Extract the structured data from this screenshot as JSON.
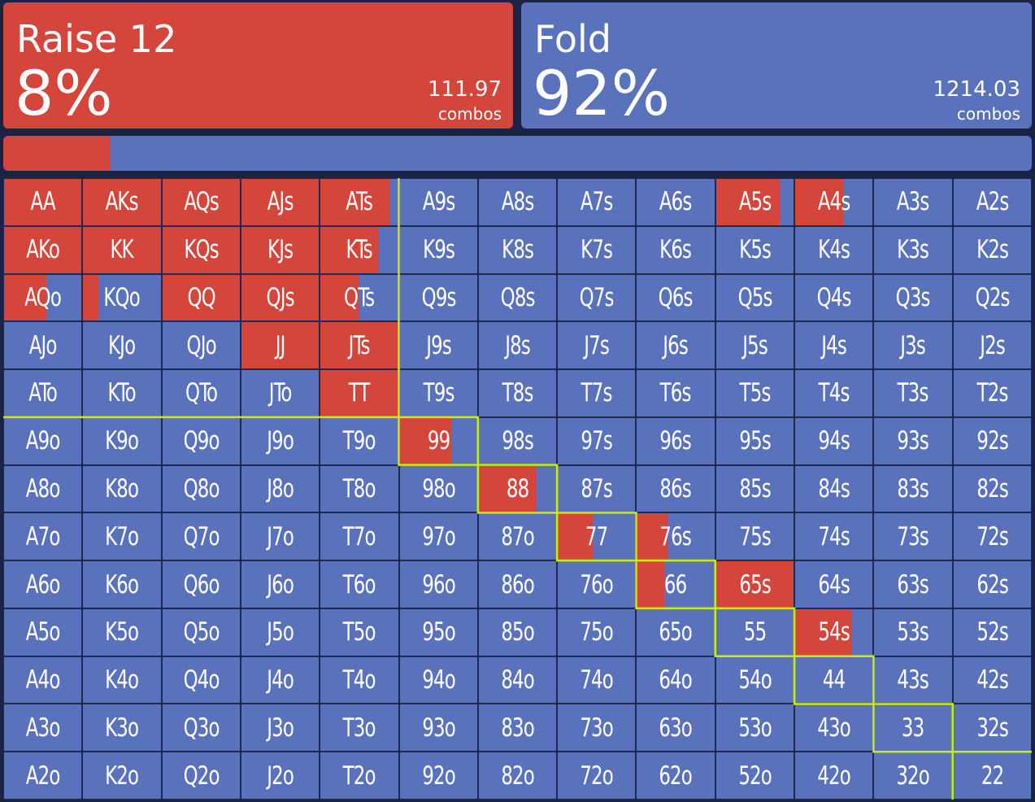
{
  "colors": {
    "raise": "#d4453b",
    "fold": "#5a72bb",
    "outline": "#c8f000"
  },
  "actions": [
    {
      "name": "Raise 12",
      "percent": "8%",
      "combos": "111.97",
      "combos_label": "combos"
    },
    {
      "name": "Fold",
      "percent": "92%",
      "combos": "1214.03",
      "combos_label": "combos"
    }
  ],
  "frequency_bar": {
    "raise_fraction": 0.08,
    "fold_fraction": 0.92
  },
  "grid": {
    "hands": [
      [
        "AA",
        "AKs",
        "AQs",
        "AJs",
        "ATs",
        "A9s",
        "A8s",
        "A7s",
        "A6s",
        "A5s",
        "A4s",
        "A3s",
        "A2s"
      ],
      [
        "AKo",
        "KK",
        "KQs",
        "KJs",
        "KTs",
        "K9s",
        "K8s",
        "K7s",
        "K6s",
        "K5s",
        "K4s",
        "K3s",
        "K2s"
      ],
      [
        "AQo",
        "KQo",
        "QQ",
        "QJs",
        "QTs",
        "Q9s",
        "Q8s",
        "Q7s",
        "Q6s",
        "Q5s",
        "Q4s",
        "Q3s",
        "Q2s"
      ],
      [
        "AJo",
        "KJo",
        "QJo",
        "JJ",
        "JTs",
        "J9s",
        "J8s",
        "J7s",
        "J6s",
        "J5s",
        "J4s",
        "J3s",
        "J2s"
      ],
      [
        "ATo",
        "KTo",
        "QTo",
        "JTo",
        "TT",
        "T9s",
        "T8s",
        "T7s",
        "T6s",
        "T5s",
        "T4s",
        "T3s",
        "T2s"
      ],
      [
        "A9o",
        "K9o",
        "Q9o",
        "J9o",
        "T9o",
        "99",
        "98s",
        "97s",
        "96s",
        "95s",
        "94s",
        "93s",
        "92s"
      ],
      [
        "A8o",
        "K8o",
        "Q8o",
        "J8o",
        "T8o",
        "98o",
        "88",
        "87s",
        "86s",
        "85s",
        "84s",
        "83s",
        "82s"
      ],
      [
        "A7o",
        "K7o",
        "Q7o",
        "J7o",
        "T7o",
        "97o",
        "87o",
        "77",
        "76s",
        "75s",
        "74s",
        "73s",
        "72s"
      ],
      [
        "A6o",
        "K6o",
        "Q6o",
        "J6o",
        "T6o",
        "96o",
        "86o",
        "76o",
        "66",
        "65s",
        "64s",
        "63s",
        "62s"
      ],
      [
        "A5o",
        "K5o",
        "Q5o",
        "J5o",
        "T5o",
        "95o",
        "85o",
        "75o",
        "65o",
        "55",
        "54s",
        "53s",
        "52s"
      ],
      [
        "A4o",
        "K4o",
        "Q4o",
        "J4o",
        "T4o",
        "94o",
        "84o",
        "74o",
        "64o",
        "54o",
        "44",
        "43s",
        "42s"
      ],
      [
        "A3o",
        "K3o",
        "Q3o",
        "J3o",
        "T3o",
        "93o",
        "83o",
        "73o",
        "63o",
        "53o",
        "43o",
        "33",
        "32s"
      ],
      [
        "A2o",
        "K2o",
        "Q2o",
        "J2o",
        "T2o",
        "92o",
        "82o",
        "72o",
        "62o",
        "52o",
        "42o",
        "32o",
        "22"
      ]
    ],
    "raise_frequency": [
      [
        1.0,
        1.0,
        1.0,
        1.0,
        0.9,
        0,
        0,
        0,
        0,
        0.82,
        0.62,
        0,
        0
      ],
      [
        1.0,
        1.0,
        1.0,
        1.0,
        0.75,
        0,
        0,
        0,
        0,
        0,
        0,
        0,
        0
      ],
      [
        0.55,
        0.2,
        1.0,
        1.0,
        0.5,
        0,
        0,
        0,
        0,
        0,
        0,
        0,
        0
      ],
      [
        0,
        0,
        0,
        1.0,
        1.0,
        0,
        0,
        0,
        0,
        0,
        0,
        0,
        0
      ],
      [
        0,
        0,
        0,
        0,
        1.0,
        0,
        0,
        0,
        0,
        0,
        0,
        0,
        0
      ],
      [
        0,
        0,
        0,
        0,
        0,
        0.67,
        0,
        0,
        0,
        0,
        0,
        0,
        0
      ],
      [
        0,
        0,
        0,
        0,
        0,
        0,
        0.75,
        0,
        0,
        0,
        0,
        0,
        0
      ],
      [
        0,
        0,
        0,
        0,
        0,
        0,
        0,
        0.45,
        0.4,
        0,
        0,
        0,
        0
      ],
      [
        0,
        0,
        0,
        0,
        0,
        0,
        0,
        0,
        0.35,
        1.0,
        0,
        0,
        0
      ],
      [
        0,
        0,
        0,
        0,
        0,
        0,
        0,
        0,
        0,
        0,
        0.73,
        0,
        0
      ],
      [
        0,
        0,
        0,
        0,
        0,
        0,
        0,
        0,
        0,
        0,
        0,
        0,
        0
      ],
      [
        0,
        0,
        0,
        0,
        0,
        0,
        0,
        0,
        0,
        0,
        0,
        0,
        0
      ],
      [
        0,
        0,
        0,
        0,
        0,
        0,
        0,
        0,
        0,
        0,
        0,
        0,
        0
      ]
    ]
  }
}
